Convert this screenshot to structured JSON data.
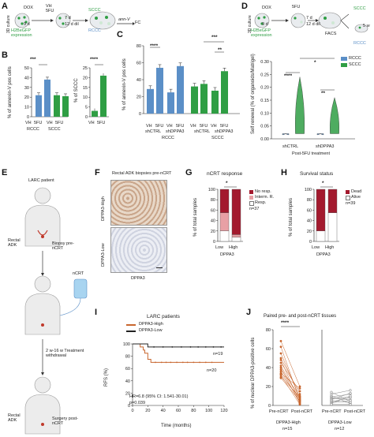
{
  "panel_labels": [
    "A",
    "B",
    "C",
    "D",
    "E",
    "F",
    "G",
    "H",
    "I",
    "J"
  ],
  "colors": {
    "blue": "#5b8fc7",
    "green": "#2f9e44",
    "dark_red": "#a31a2e",
    "pink": "#e8a0a5",
    "orange": "#c8662e",
    "gray": "#7a7a7a"
  },
  "panel_a": {
    "side_label": "3D culture",
    "culture_label": "H2BeGFP expression",
    "dox": "DOX",
    "dox_days": "9 d",
    "treatment": "VH 5FU",
    "treatment_days": "7 d",
    "treatment_days2": "12 d dil",
    "stain": "ann-V",
    "readout": "FC",
    "scc": "SCCC",
    "rcc": "RCCC"
  },
  "panel_b": {
    "ylabel1": "% of annexin-V pos cells",
    "ylabel2": "% of SCCC",
    "sig1": "***",
    "sig2": "****",
    "xcats": [
      "VH",
      "5FU",
      "VH",
      "5FU"
    ],
    "groups": [
      "RCCC",
      "SCCC"
    ],
    "xcats2": [
      "VH",
      "5FU"
    ],
    "yticks1": [
      "0",
      "10",
      "20",
      "30",
      "40",
      "50"
    ],
    "yticks2": [
      "0",
      "5",
      "10",
      "15",
      "20",
      "25"
    ]
  },
  "panel_c": {
    "ylabel": "% of annexin-V pos cells",
    "yticks": [
      "0",
      "20",
      "40",
      "60",
      "80"
    ],
    "sig": [
      "****",
      "***",
      "**"
    ],
    "xcats": [
      "VH",
      "5FU",
      "VH",
      "5FU",
      "VH",
      "5FU",
      "VH",
      "5FU"
    ],
    "sub": [
      "shCTRL",
      "shDPPA3",
      "shCTRL",
      "shDPPA3"
    ],
    "groups": [
      "RCCC",
      "SCCC"
    ]
  },
  "panel_d": {
    "side_label": "3D culture",
    "culture_label": "H2BeGFP expression",
    "dox": "DOX",
    "dox_days": "9 d",
    "treatment": "5FU",
    "treatment_days": "7 d",
    "treatment_days2": "12 d dil",
    "sort": "FACS",
    "scc": "SCCC",
    "rcc": "RCCC",
    "weeks": "5 w",
    "ylabel": "Self renewal (% of organoids/Matrigel)",
    "yticks": [
      "0.00",
      "0.05",
      "0.10",
      "0.15",
      "0.20",
      "0.25",
      "0.30"
    ],
    "legend": [
      "RCCC",
      "SCCC"
    ],
    "sig": [
      "****",
      "**",
      "*"
    ],
    "xcats": [
      "shCTRL",
      "shDPPA3"
    ],
    "xgroup": "Post-5FU treatment"
  },
  "panel_e": {
    "patient": "LARC patient",
    "step1_site": "Rectal ADK",
    "step1": "Biopsy pre-nCRT",
    "drug": "nCRT",
    "interval": "2 w-16 w Treatment withdrawal",
    "step2_site": "Rectal ADK",
    "step2": "Surgery post-nCRT"
  },
  "panel_f": {
    "title": "Rectal ADK biopsies pre-nCRT",
    "high": "DPPA3-High",
    "low": "DPPA3-Low",
    "stain": "DPPA3"
  },
  "panel_g": {
    "title": "nCRT response",
    "ylabel": "% of total samples",
    "yticks": [
      "0",
      "20",
      "40",
      "60",
      "80",
      "100"
    ],
    "legend": [
      "No resp.",
      "Interm. R.",
      "Resp."
    ],
    "n": "n=37",
    "sig": "*",
    "xcats": [
      "Low",
      "High"
    ],
    "xgroup": "DPPA3"
  },
  "panel_h": {
    "title": "Survival status",
    "ylabel": "% of total samples",
    "yticks": [
      "0",
      "20",
      "40",
      "60",
      "80",
      "100"
    ],
    "legend": [
      "Dead",
      "Alive"
    ],
    "n": "n=39",
    "sig": "*",
    "xcats": [
      "Low",
      "High"
    ],
    "xgroup": "DPPA3"
  },
  "panel_i": {
    "title": "LARC patients",
    "legend": [
      "DPPA3-High",
      "DPPA3-Low"
    ],
    "ylabel": "RFS (%)",
    "xlabel": "Time (months)",
    "xticks": [
      "0",
      "20",
      "40",
      "60",
      "80",
      "100",
      "120"
    ],
    "yticks": [
      "0",
      "20",
      "40",
      "60",
      "80",
      "100"
    ],
    "n1": "n=19",
    "n2": "n=20",
    "hr": "HR=6.8 (95% CI: 1.541-30.01)",
    "p": "p=0.039"
  },
  "panel_j": {
    "title": "Paired pre- and post-nCRT tissues",
    "ylabel": "% of nuclear DPPA3-positive cells",
    "yticks": [
      "0",
      "20",
      "40",
      "60",
      "80"
    ],
    "sig": "****",
    "xcats": [
      "Pre-nCRT",
      "Post-nCRT",
      "Pre-nCRT",
      "Post-nCRT"
    ],
    "groups": [
      "DPPA3-High",
      "DPPA3-Low"
    ],
    "ns": [
      "n=15",
      "n=12"
    ]
  },
  "chart_data": [
    {
      "type": "bar",
      "categories": [
        "VH",
        "5FU",
        "VH",
        "5FU"
      ],
      "groups": [
        "RCCC",
        "RCCC",
        "SCCC",
        "SCCC"
      ],
      "values": [
        22,
        38,
        22,
        21
      ],
      "ylabel": "% of annexin-V pos cells",
      "ylim": [
        0,
        50
      ]
    },
    {
      "type": "bar",
      "categories": [
        "VH",
        "5FU"
      ],
      "values": [
        3,
        21
      ],
      "ylabel": "% of SCCC",
      "ylim": [
        0,
        25
      ]
    },
    {
      "type": "bar",
      "categories": [
        "VH",
        "5FU",
        "VH",
        "5FU",
        "VH",
        "5FU",
        "VH",
        "5FU"
      ],
      "values": [
        29,
        54,
        25,
        56,
        32,
        35,
        27,
        50
      ],
      "ylabel": "% of annexin-V pos cells",
      "ylim": [
        0,
        80
      ]
    },
    {
      "type": "bar",
      "categories": [
        "Low",
        "High"
      ],
      "series": [
        {
          "name": "Resp.",
          "values": [
            20,
            8
          ]
        },
        {
          "name": "Interm. R.",
          "values": [
            35,
            5
          ]
        },
        {
          "name": "No resp.",
          "values": [
            45,
            87
          ]
        }
      ],
      "ylabel": "% of total samples",
      "ylim": [
        0,
        100
      ]
    },
    {
      "type": "bar",
      "categories": [
        "Low",
        "High"
      ],
      "series": [
        {
          "name": "Alive",
          "values": [
            20,
            55
          ]
        },
        {
          "name": "Dead",
          "values": [
            80,
            45
          ]
        }
      ],
      "ylabel": "% of total samples",
      "ylim": [
        0,
        100
      ]
    },
    {
      "type": "line",
      "ylabel": "RFS (%)",
      "xlabel": "Time (months)",
      "xlim": [
        0,
        120
      ],
      "ylim": [
        0,
        100
      ],
      "series": [
        {
          "name": "DPPA3-High",
          "x": [
            0,
            10,
            14,
            16,
            20,
            24,
            120
          ],
          "y": [
            100,
            95,
            90,
            85,
            75,
            70,
            70
          ]
        },
        {
          "name": "DPPA3-Low",
          "x": [
            0,
            20,
            120
          ],
          "y": [
            100,
            95,
            95
          ]
        }
      ]
    }
  ]
}
